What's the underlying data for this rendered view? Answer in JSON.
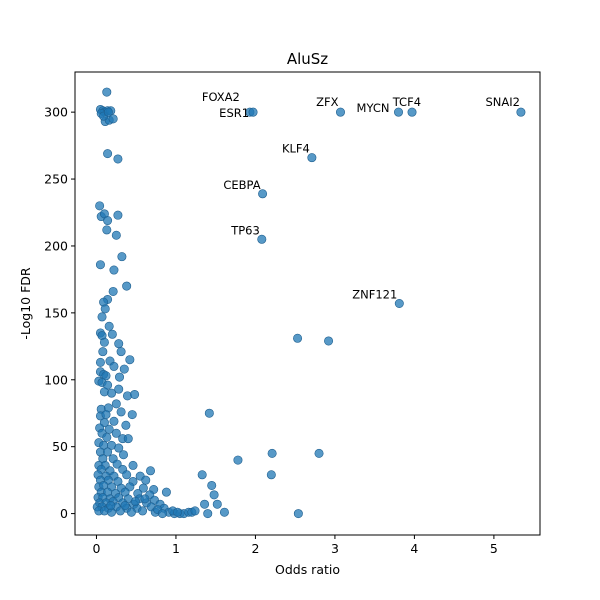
{
  "chart_data": {
    "type": "scatter",
    "title": "AluSz",
    "xlabel": "Odds ratio",
    "ylabel": "-Log10 FDR",
    "xlim": [
      -0.27,
      5.58
    ],
    "ylim": [
      -16,
      330
    ],
    "xticks": [
      0,
      1,
      2,
      3,
      4,
      5
    ],
    "yticks": [
      0,
      50,
      100,
      150,
      200,
      250,
      300
    ],
    "grid": false,
    "legend": "none",
    "point_color": "#1f77b4",
    "point_opacity": 0.75,
    "annotations": [
      {
        "text": "FOXA2",
        "x": 1.93,
        "y": 300
      },
      {
        "text": "ESR1",
        "x": 1.97,
        "y": 300
      },
      {
        "text": "ZFX",
        "x": 3.07,
        "y": 300
      },
      {
        "text": "MYCN",
        "x": 3.8,
        "y": 300
      },
      {
        "text": "TCF4",
        "x": 3.97,
        "y": 300
      },
      {
        "text": "SNAI2",
        "x": 5.34,
        "y": 300
      },
      {
        "text": "KLF4",
        "x": 2.71,
        "y": 266
      },
      {
        "text": "CEBPA",
        "x": 2.09,
        "y": 239
      },
      {
        "text": "TP63",
        "x": 2.08,
        "y": 205
      },
      {
        "text": "ZNF121",
        "x": 3.81,
        "y": 157
      }
    ],
    "series": [
      {
        "points": [
          [
            0.13,
            315
          ],
          [
            0.05,
            302
          ],
          [
            0.08,
            301
          ],
          [
            0.1,
            300
          ],
          [
            0.14,
            301
          ],
          [
            0.18,
            301
          ],
          [
            0.06,
            299
          ],
          [
            0.11,
            293
          ],
          [
            0.16,
            294
          ],
          [
            0.21,
            295
          ],
          [
            0.09,
            297
          ],
          [
            0.15,
            300
          ],
          [
            0.14,
            269
          ],
          [
            0.27,
            265
          ],
          [
            0.04,
            230
          ],
          [
            0.06,
            222
          ],
          [
            0.1,
            224
          ],
          [
            0.14,
            219
          ],
          [
            0.27,
            223
          ],
          [
            0.13,
            212
          ],
          [
            0.25,
            208
          ],
          [
            0.32,
            192
          ],
          [
            0.05,
            186
          ],
          [
            0.22,
            182
          ],
          [
            0.38,
            170
          ],
          [
            0.21,
            166
          ],
          [
            0.14,
            160
          ],
          [
            0.09,
            158
          ],
          [
            0.11,
            153
          ],
          [
            0.07,
            147
          ],
          [
            0.16,
            140
          ],
          [
            0.05,
            135
          ],
          [
            0.07,
            133
          ],
          [
            0.2,
            134
          ],
          [
            0.1,
            128
          ],
          [
            0.28,
            127
          ],
          [
            0.08,
            121
          ],
          [
            0.31,
            121
          ],
          [
            0.05,
            113
          ],
          [
            0.17,
            114
          ],
          [
            0.42,
            115
          ],
          [
            0.22,
            110
          ],
          [
            0.35,
            108
          ],
          [
            0.05,
            106
          ],
          [
            0.09,
            104
          ],
          [
            0.12,
            103
          ],
          [
            0.29,
            102
          ],
          [
            0.03,
            99
          ],
          [
            0.07,
            98
          ],
          [
            0.14,
            96
          ],
          [
            0.28,
            93
          ],
          [
            0.1,
            91
          ],
          [
            0.19,
            90
          ],
          [
            0.39,
            88
          ],
          [
            0.48,
            89
          ],
          [
            0.25,
            82
          ],
          [
            0.06,
            78
          ],
          [
            0.15,
            79
          ],
          [
            0.05,
            73
          ],
          [
            0.12,
            74
          ],
          [
            0.31,
            76
          ],
          [
            0.45,
            74
          ],
          [
            0.1,
            68
          ],
          [
            0.22,
            69
          ],
          [
            0.04,
            64
          ],
          [
            0.16,
            63
          ],
          [
            0.37,
            66
          ],
          [
            0.07,
            60
          ],
          [
            0.25,
            60
          ],
          [
            0.13,
            57
          ],
          [
            0.33,
            56
          ],
          [
            0.4,
            56
          ],
          [
            0.03,
            53
          ],
          [
            0.09,
            51
          ],
          [
            0.19,
            51
          ],
          [
            0.28,
            49
          ],
          [
            0.05,
            46
          ],
          [
            0.14,
            46
          ],
          [
            0.34,
            44
          ],
          [
            0.08,
            41
          ],
          [
            0.21,
            41
          ],
          [
            0.03,
            36
          ],
          [
            0.11,
            36
          ],
          [
            0.26,
            37
          ],
          [
            0.46,
            36
          ],
          [
            0.06,
            33
          ],
          [
            0.17,
            32
          ],
          [
            0.33,
            33
          ],
          [
            0.68,
            32
          ],
          [
            0.02,
            29
          ],
          [
            0.12,
            28
          ],
          [
            0.22,
            28
          ],
          [
            0.38,
            29
          ],
          [
            0.55,
            28
          ],
          [
            0.05,
            25
          ],
          [
            0.15,
            25
          ],
          [
            0.27,
            24
          ],
          [
            0.46,
            24
          ],
          [
            0.62,
            25
          ],
          [
            0.03,
            20
          ],
          [
            0.09,
            21
          ],
          [
            0.19,
            20
          ],
          [
            0.31,
            19
          ],
          [
            0.42,
            20
          ],
          [
            0.59,
            19
          ],
          [
            0.72,
            18
          ],
          [
            0.06,
            16
          ],
          [
            0.14,
            16
          ],
          [
            0.24,
            15
          ],
          [
            0.36,
            16
          ],
          [
            0.52,
            15
          ],
          [
            0.67,
            14
          ],
          [
            0.88,
            16
          ],
          [
            0.02,
            12
          ],
          [
            0.08,
            12
          ],
          [
            0.17,
            11
          ],
          [
            0.28,
            12
          ],
          [
            0.4,
            11
          ],
          [
            0.54,
            11
          ],
          [
            0.73,
            10
          ],
          [
            0.04,
            8
          ],
          [
            0.12,
            8
          ],
          [
            0.21,
            9
          ],
          [
            0.33,
            8
          ],
          [
            0.47,
            7
          ],
          [
            0.63,
            8
          ],
          [
            0.8,
            7
          ],
          [
            0.01,
            5
          ],
          [
            0.07,
            5
          ],
          [
            0.15,
            4
          ],
          [
            0.25,
            5
          ],
          [
            0.38,
            4
          ],
          [
            0.51,
            4
          ],
          [
            0.69,
            5
          ],
          [
            0.85,
            4
          ],
          [
            0.03,
            2
          ],
          [
            0.1,
            2
          ],
          [
            0.19,
            1
          ],
          [
            0.3,
            2
          ],
          [
            0.44,
            1
          ],
          [
            0.58,
            2
          ],
          [
            0.74,
            1
          ],
          [
            0.91,
            1
          ],
          [
            0.98,
            0
          ],
          [
            1.05,
            0
          ],
          [
            1.1,
            0
          ],
          [
            1.16,
            1
          ],
          [
            1.2,
            1
          ],
          [
            1.24,
            2
          ],
          [
            0.96,
            2
          ],
          [
            1.02,
            1
          ],
          [
            0.18,
            6
          ],
          [
            0.36,
            6
          ],
          [
            0.49,
            9
          ],
          [
            0.61,
            11
          ],
          [
            0.77,
            3
          ],
          [
            0.83,
            0
          ],
          [
            1.33,
            29
          ],
          [
            1.42,
            75
          ],
          [
            1.45,
            21
          ],
          [
            1.48,
            14
          ],
          [
            1.52,
            7
          ],
          [
            1.4,
            0
          ],
          [
            1.36,
            7
          ],
          [
            1.61,
            1
          ],
          [
            1.78,
            40
          ],
          [
            2.21,
            45
          ],
          [
            2.2,
            29
          ],
          [
            2.53,
            131
          ],
          [
            2.54,
            0
          ],
          [
            2.8,
            45
          ],
          [
            2.92,
            129
          ],
          [
            1.93,
            300
          ],
          [
            1.97,
            300
          ],
          [
            3.07,
            300
          ],
          [
            3.8,
            300
          ],
          [
            3.97,
            300
          ],
          [
            5.34,
            300
          ],
          [
            2.71,
            266
          ],
          [
            2.09,
            239
          ],
          [
            2.08,
            205
          ],
          [
            3.81,
            157
          ]
        ]
      }
    ]
  }
}
